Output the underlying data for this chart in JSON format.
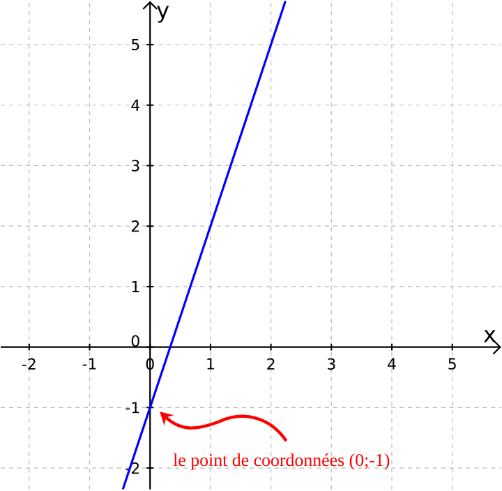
{
  "chart_data": {
    "type": "line",
    "xlabel": "x",
    "ylabel": "y",
    "x": [
      -0.45,
      0,
      2.24
    ],
    "values": [
      -2.35,
      -1,
      5.72
    ],
    "color": "#0000ff",
    "xlim": [
      -2.47,
      5.81
    ],
    "ylim": [
      -2.35,
      5.72
    ],
    "xticks": [
      -2,
      -1,
      0,
      1,
      2,
      3,
      4,
      5
    ],
    "yticks": [
      -2,
      -1,
      0,
      1,
      2,
      3,
      4,
      5
    ],
    "grid": true,
    "annotations": [
      {
        "text": "le point de coordonnées (0;-1)",
        "x": 0,
        "y": -1
      }
    ]
  }
}
